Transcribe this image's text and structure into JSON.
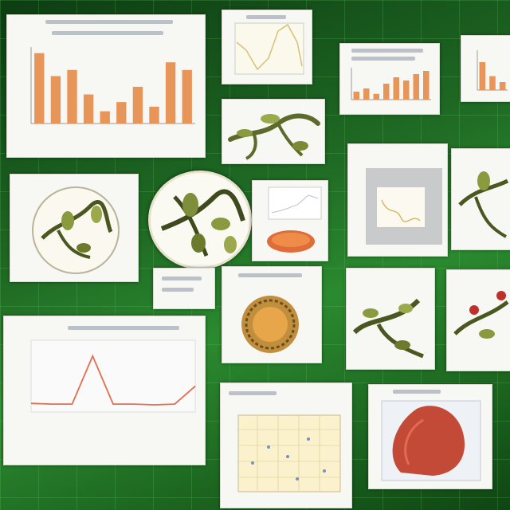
{
  "colors": {
    "bar": "#e8955a",
    "line_red": "#e36d4e",
    "plant_green": "#5c6b2c",
    "plant_dark": "#2d3717",
    "paper": "#f7f7f4",
    "bg_green": "#1f6a24"
  },
  "panels": {
    "main_bar_chart": {
      "icon": "bar-chart-icon"
    },
    "small_line_chart": {
      "icon": "line-chart-icon"
    },
    "mini_bar_chart": {
      "icon": "bar-chart-icon"
    },
    "edge_bar_chart": {
      "icon": "bar-chart-icon"
    },
    "plant_diagram_1": {
      "icon": "plant-illustration-icon"
    },
    "plant_diagram_2": {
      "icon": "plant-illustration-icon"
    },
    "circular_specimen": {
      "icon": "plant-illustration-icon"
    },
    "sample_scatter": {
      "icon": "scatter-icon"
    },
    "fungus_sample": {
      "icon": "fungus-illustration-icon"
    },
    "peak_line_chart": {
      "icon": "line-chart-icon"
    },
    "grid_scatter": {
      "icon": "scatter-icon"
    },
    "tumor_sample": {
      "icon": "specimen-illustration-icon"
    }
  }
}
